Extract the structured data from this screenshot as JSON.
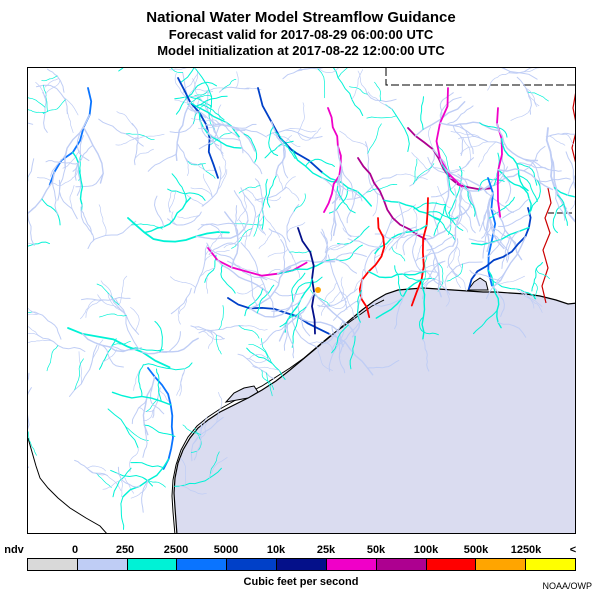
{
  "header": {
    "title": "National Water Model Streamflow Guidance",
    "valid_line": "Forecast valid for 2017-08-29 06:00:00 UTC",
    "init_line": "Model initialization at 2017-08-22 12:00:00 UTC"
  },
  "legend": {
    "labels": [
      "ndv",
      "0",
      "250",
      "2500",
      "5000",
      "10k",
      "25k",
      "50k",
      "100k",
      "500k",
      "1250k",
      "<"
    ],
    "colors": [
      "#d9d9d9",
      "#bfcdf5",
      "#00f2d6",
      "#0a74ff",
      "#0040c8",
      "#04108a",
      "#f000c8",
      "#ad0090",
      "#ff0000",
      "#ffa500",
      "#ffff00"
    ],
    "units": "Cubic feet per second"
  },
  "map": {
    "water_color": "#dadcf0",
    "land_color": "#ffffff",
    "region": "Texas / Louisiana Gulf Coast"
  },
  "credit": "NOAA/OWP"
}
